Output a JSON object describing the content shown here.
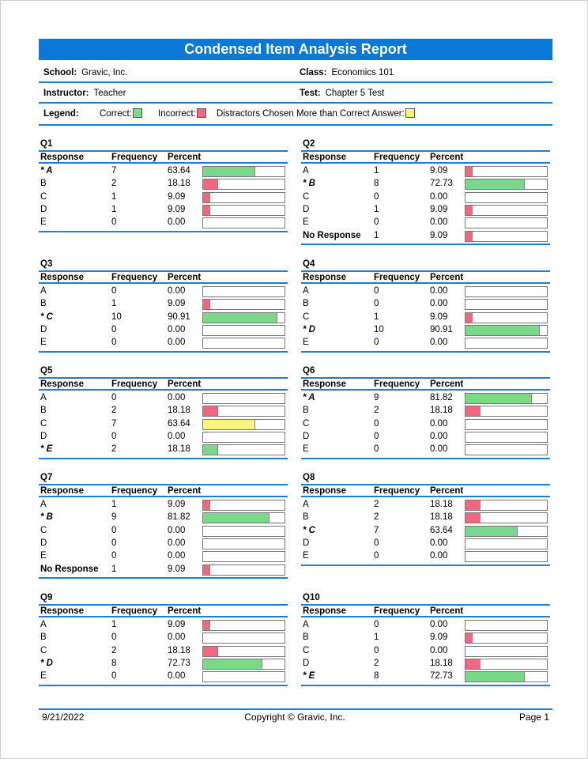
{
  "report": {
    "title": "Condensed Item Analysis Report",
    "school_label": "School:",
    "school": "Gravic, Inc.",
    "class_label": "Class:",
    "class": "Economics 101",
    "instructor_label": "Instructor:",
    "instructor": "Teacher",
    "test_label": "Test:",
    "test": "Chapter 5 Test"
  },
  "legend": {
    "label": "Legend:",
    "correct": "Correct:",
    "incorrect": "Incorrect:",
    "distractor": "Distractors Chosen More than Correct Answer:"
  },
  "colors": {
    "accent": "#0a78d7",
    "correct": "#7bd88a",
    "incorrect": "#f2677f",
    "distractor": "#fdf37d"
  },
  "columns": {
    "response": "Response",
    "frequency": "Frequency",
    "percent": "Percent"
  },
  "questions": [
    {
      "name": "Q1",
      "rows": [
        {
          "response": "* A",
          "frequency": "7",
          "percent": "63.64",
          "value": 63.64,
          "status": "correct"
        },
        {
          "response": "B",
          "frequency": "2",
          "percent": "18.18",
          "value": 18.18,
          "status": "incorrect"
        },
        {
          "response": "C",
          "frequency": "1",
          "percent": "9.09",
          "value": 9.09,
          "status": "incorrect"
        },
        {
          "response": "D",
          "frequency": "1",
          "percent": "9.09",
          "value": 9.09,
          "status": "incorrect"
        },
        {
          "response": "E",
          "frequency": "0",
          "percent": "0.00",
          "value": 0,
          "status": "incorrect"
        }
      ]
    },
    {
      "name": "Q2",
      "rows": [
        {
          "response": "A",
          "frequency": "1",
          "percent": "9.09",
          "value": 9.09,
          "status": "incorrect"
        },
        {
          "response": "* B",
          "frequency": "8",
          "percent": "72.73",
          "value": 72.73,
          "status": "correct"
        },
        {
          "response": "C",
          "frequency": "0",
          "percent": "0.00",
          "value": 0,
          "status": "incorrect"
        },
        {
          "response": "D",
          "frequency": "1",
          "percent": "9.09",
          "value": 9.09,
          "status": "incorrect"
        },
        {
          "response": "E",
          "frequency": "0",
          "percent": "0.00",
          "value": 0,
          "status": "incorrect"
        },
        {
          "response": "No Response",
          "frequency": "1",
          "percent": "9.09",
          "value": 9.09,
          "status": "incorrect",
          "noresp": true
        }
      ]
    },
    {
      "name": "Q3",
      "rows": [
        {
          "response": "A",
          "frequency": "0",
          "percent": "0.00",
          "value": 0,
          "status": "incorrect"
        },
        {
          "response": "B",
          "frequency": "1",
          "percent": "9.09",
          "value": 9.09,
          "status": "incorrect"
        },
        {
          "response": "* C",
          "frequency": "10",
          "percent": "90.91",
          "value": 90.91,
          "status": "correct"
        },
        {
          "response": "D",
          "frequency": "0",
          "percent": "0.00",
          "value": 0,
          "status": "incorrect"
        },
        {
          "response": "E",
          "frequency": "0",
          "percent": "0.00",
          "value": 0,
          "status": "incorrect"
        }
      ]
    },
    {
      "name": "Q4",
      "rows": [
        {
          "response": "A",
          "frequency": "0",
          "percent": "0.00",
          "value": 0,
          "status": "incorrect"
        },
        {
          "response": "B",
          "frequency": "0",
          "percent": "0.00",
          "value": 0,
          "status": "incorrect"
        },
        {
          "response": "C",
          "frequency": "1",
          "percent": "9.09",
          "value": 9.09,
          "status": "incorrect"
        },
        {
          "response": "* D",
          "frequency": "10",
          "percent": "90.91",
          "value": 90.91,
          "status": "correct"
        },
        {
          "response": "E",
          "frequency": "0",
          "percent": "0.00",
          "value": 0,
          "status": "incorrect"
        }
      ]
    },
    {
      "name": "Q5",
      "rows": [
        {
          "response": "A",
          "frequency": "0",
          "percent": "0.00",
          "value": 0,
          "status": "incorrect"
        },
        {
          "response": "B",
          "frequency": "2",
          "percent": "18.18",
          "value": 18.18,
          "status": "incorrect"
        },
        {
          "response": "C",
          "frequency": "7",
          "percent": "63.64",
          "value": 63.64,
          "status": "distractor"
        },
        {
          "response": "D",
          "frequency": "0",
          "percent": "0.00",
          "value": 0,
          "status": "incorrect"
        },
        {
          "response": "* E",
          "frequency": "2",
          "percent": "18.18",
          "value": 18.18,
          "status": "correct"
        }
      ]
    },
    {
      "name": "Q6",
      "rows": [
        {
          "response": "* A",
          "frequency": "9",
          "percent": "81.82",
          "value": 81.82,
          "status": "correct"
        },
        {
          "response": "B",
          "frequency": "2",
          "percent": "18.18",
          "value": 18.18,
          "status": "incorrect"
        },
        {
          "response": "C",
          "frequency": "0",
          "percent": "0.00",
          "value": 0,
          "status": "incorrect"
        },
        {
          "response": "D",
          "frequency": "0",
          "percent": "0.00",
          "value": 0,
          "status": "incorrect"
        },
        {
          "response": "E",
          "frequency": "0",
          "percent": "0.00",
          "value": 0,
          "status": "incorrect"
        }
      ]
    },
    {
      "name": "Q7",
      "rows": [
        {
          "response": "A",
          "frequency": "1",
          "percent": "9.09",
          "value": 9.09,
          "status": "incorrect"
        },
        {
          "response": "* B",
          "frequency": "9",
          "percent": "81.82",
          "value": 81.82,
          "status": "correct"
        },
        {
          "response": "C",
          "frequency": "0",
          "percent": "0.00",
          "value": 0,
          "status": "incorrect"
        },
        {
          "response": "D",
          "frequency": "0",
          "percent": "0.00",
          "value": 0,
          "status": "incorrect"
        },
        {
          "response": "E",
          "frequency": "0",
          "percent": "0.00",
          "value": 0,
          "status": "incorrect"
        },
        {
          "response": "No Response",
          "frequency": "1",
          "percent": "9.09",
          "value": 9.09,
          "status": "incorrect",
          "noresp": true
        }
      ]
    },
    {
      "name": "Q8",
      "rows": [
        {
          "response": "A",
          "frequency": "2",
          "percent": "18.18",
          "value": 18.18,
          "status": "incorrect"
        },
        {
          "response": "B",
          "frequency": "2",
          "percent": "18.18",
          "value": 18.18,
          "status": "incorrect"
        },
        {
          "response": "* C",
          "frequency": "7",
          "percent": "63.64",
          "value": 63.64,
          "status": "correct"
        },
        {
          "response": "D",
          "frequency": "0",
          "percent": "0.00",
          "value": 0,
          "status": "incorrect"
        },
        {
          "response": "E",
          "frequency": "0",
          "percent": "0.00",
          "value": 0,
          "status": "incorrect"
        }
      ]
    },
    {
      "name": "Q9",
      "rows": [
        {
          "response": "A",
          "frequency": "1",
          "percent": "9.09",
          "value": 9.09,
          "status": "incorrect"
        },
        {
          "response": "B",
          "frequency": "0",
          "percent": "0.00",
          "value": 0,
          "status": "incorrect"
        },
        {
          "response": "C",
          "frequency": "2",
          "percent": "18.18",
          "value": 18.18,
          "status": "incorrect"
        },
        {
          "response": "* D",
          "frequency": "8",
          "percent": "72.73",
          "value": 72.73,
          "status": "correct"
        },
        {
          "response": "E",
          "frequency": "0",
          "percent": "0.00",
          "value": 0,
          "status": "incorrect"
        }
      ]
    },
    {
      "name": "Q10",
      "rows": [
        {
          "response": "A",
          "frequency": "0",
          "percent": "0.00",
          "value": 0,
          "status": "incorrect"
        },
        {
          "response": "B",
          "frequency": "1",
          "percent": "9.09",
          "value": 9.09,
          "status": "incorrect"
        },
        {
          "response": "C",
          "frequency": "0",
          "percent": "0.00",
          "value": 0,
          "status": "incorrect"
        },
        {
          "response": "D",
          "frequency": "2",
          "percent": "18.18",
          "value": 18.18,
          "status": "incorrect"
        },
        {
          "response": "* E",
          "frequency": "8",
          "percent": "72.73",
          "value": 72.73,
          "status": "correct"
        }
      ]
    }
  ],
  "footer": {
    "date": "9/21/2022",
    "copyright": "Copyright © Gravic, Inc.",
    "page": "Page 1"
  }
}
